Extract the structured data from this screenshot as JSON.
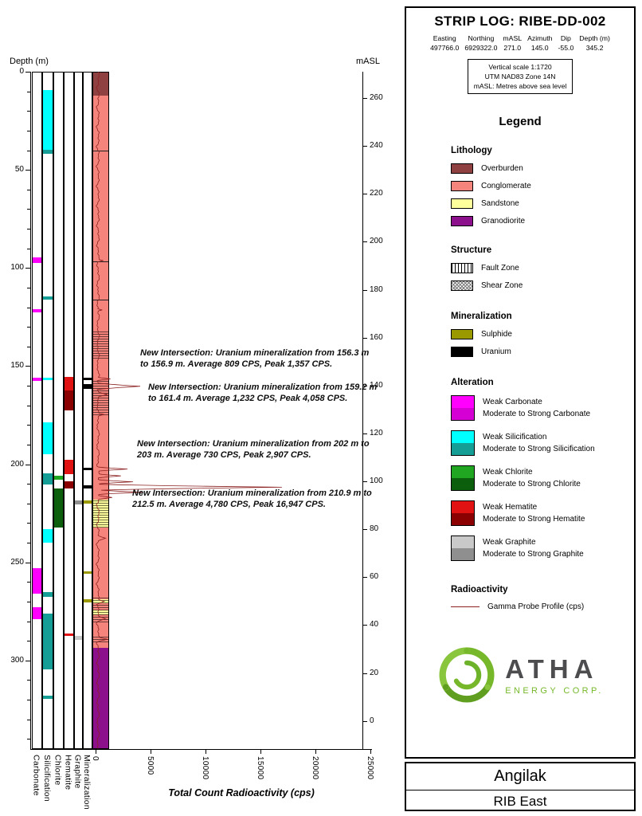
{
  "header": {
    "title": "STRIP LOG: RIBE-DD-002",
    "fields": [
      {
        "label": "Easting",
        "value": "497766.0"
      },
      {
        "label": "Northing",
        "value": "6929322.0"
      },
      {
        "label": "mASL",
        "value": "271.0"
      },
      {
        "label": "Azimuth",
        "value": "145.0"
      },
      {
        "label": "Dip",
        "value": "-55.0"
      },
      {
        "label": "Depth (m)",
        "value": "345.2"
      }
    ],
    "notes": [
      "Vertical scale 1:1720",
      "UTM NAD83 Zone 14N",
      "mASL: Metres above sea level"
    ]
  },
  "legend": {
    "title": "Legend",
    "lithology": {
      "title": "Lithology",
      "items": [
        {
          "label": "Overburden",
          "color": "#8f4040"
        },
        {
          "label": "Conglomerate",
          "color": "#f5847c"
        },
        {
          "label": "Sandstone",
          "color": "#ffff9c"
        },
        {
          "label": "Granodiorite",
          "color": "#8c0f8c"
        }
      ]
    },
    "structure": {
      "title": "Structure",
      "items": [
        {
          "label": "Fault Zone",
          "pattern": "fault"
        },
        {
          "label": "Shear Zone",
          "pattern": "shear"
        }
      ]
    },
    "mineralization": {
      "title": "Mineralization",
      "items": [
        {
          "label": "Sulphide",
          "color": "#9a9a00"
        },
        {
          "label": "Uranium",
          "color": "#000000"
        }
      ]
    },
    "alteration": {
      "title": "Alteration",
      "items": [
        {
          "weak": "Weak Carbonate",
          "strong": "Moderate to Strong Carbonate",
          "weak_color": "#ff00ff",
          "strong_color": "#d400d4"
        },
        {
          "weak": "Weak Silicification",
          "strong": "Moderate to Strong Silicification",
          "weak_color": "#00ffff",
          "strong_color": "#159e96"
        },
        {
          "weak": "Weak Chlorite",
          "strong": "Moderate to Strong Chlorite",
          "weak_color": "#21a621",
          "strong_color": "#0b5e0b"
        },
        {
          "weak": "Weak Hematite",
          "strong": "Moderate to Strong Hematite",
          "weak_color": "#e01212",
          "strong_color": "#8b0000"
        },
        {
          "weak": "Weak Graphite",
          "strong": "Moderate to Strong Graphite",
          "weak_color": "#c9c9c9",
          "strong_color": "#8f8f8f"
        }
      ]
    },
    "radioactivity": {
      "title": "Radioactivity",
      "items": [
        {
          "label": "Gamma Probe Profile (cps)",
          "color": "#8b2020"
        }
      ]
    }
  },
  "footer": {
    "project": "Angilak",
    "area": "RIB East"
  },
  "logo": {
    "name": "ATHA",
    "subtitle": "ENERGY CORP.",
    "green": "#76b82a",
    "dark": "#4d4d4f"
  },
  "colors": {
    "Overburden": "#8f4040",
    "Conglomerate": "#f5847c",
    "Sandstone": "#ffff9c",
    "Granodiorite": "#8c0f8c",
    "Sulphide": "#9a9a00",
    "Uranium": "#000000",
    "carbonate_weak": "#ff00ff",
    "carbonate_strong": "#d400d4",
    "silicification_weak": "#00ffff",
    "silicification_strong": "#159e96",
    "chlorite_weak": "#21a621",
    "chlorite_strong": "#0b5e0b",
    "hematite_weak": "#e01212",
    "hematite_strong": "#8b0000",
    "graphite_weak": "#c9c9c9",
    "graphite_strong": "#8f8f8f",
    "gamma": "#8b2020"
  },
  "chart_data": {
    "type": "strip-log",
    "title": "STRIP LOG: RIBE-DD-002",
    "depth_axis": {
      "label": "Depth (m)",
      "min": 0,
      "max": 345.2,
      "major_tick_interval": 50,
      "minor_tick_interval": 10
    },
    "masl_axis": {
      "label": "mASL",
      "surface_masl": 271.0,
      "dip_deg": -55.0,
      "ticks": [
        260,
        240,
        220,
        200,
        180,
        160,
        140,
        120,
        100,
        80,
        60,
        40,
        20,
        0
      ]
    },
    "x_axis": {
      "label": "Total Count Radioactivity (cps)",
      "min": 0,
      "max": 25000,
      "ticks": [
        0,
        5000,
        10000,
        15000,
        20000,
        25000
      ]
    },
    "track_labels": [
      "Carbonate",
      "Silicification",
      "Chlorite",
      "Hematite",
      "Graphite",
      "Mineralization"
    ],
    "lithology": [
      {
        "unit": "Overburden",
        "from": 0,
        "to": 12.2
      },
      {
        "unit": "Conglomerate",
        "from": 12.2,
        "to": 293.5
      },
      {
        "unit": "Sandstone",
        "from": 218.0,
        "to": 232.5
      },
      {
        "unit": "Sandstone",
        "from": 268.8,
        "to": 271.0
      },
      {
        "unit": "Sandstone",
        "from": 274.5,
        "to": 276.5
      },
      {
        "unit": "Granodiorite",
        "from": 293.5,
        "to": 345.2
      }
    ],
    "alteration": {
      "carbonate": [
        {
          "from": 94.5,
          "to": 97.5,
          "grade": "weak"
        },
        {
          "from": 121.0,
          "to": 122.5,
          "grade": "weak"
        },
        {
          "from": 156.0,
          "to": 157.5,
          "grade": "weak"
        },
        {
          "from": 253.0,
          "to": 266.0,
          "grade": "weak"
        },
        {
          "from": 273.0,
          "to": 279.0,
          "grade": "weak"
        }
      ],
      "silicification": [
        {
          "from": 9.5,
          "to": 39.8,
          "grade": "weak"
        },
        {
          "from": 39.8,
          "to": 41.8,
          "grade": "strong"
        },
        {
          "from": 114.6,
          "to": 116.2,
          "grade": "strong"
        },
        {
          "from": 155.8,
          "to": 157.4,
          "grade": "weak"
        },
        {
          "from": 178.5,
          "to": 195.0,
          "grade": "weak"
        },
        {
          "from": 204.5,
          "to": 210.5,
          "grade": "strong"
        },
        {
          "from": 233.0,
          "to": 240.0,
          "grade": "weak"
        },
        {
          "from": 265.0,
          "to": 267.5,
          "grade": "strong"
        },
        {
          "from": 276.0,
          "to": 304.5,
          "grade": "strong"
        },
        {
          "from": 318.0,
          "to": 319.6,
          "grade": "strong"
        }
      ],
      "chlorite": [
        {
          "from": 206.0,
          "to": 208.0,
          "grade": "weak"
        },
        {
          "from": 212.5,
          "to": 232.5,
          "grade": "strong"
        }
      ],
      "hematite": [
        {
          "from": 155.5,
          "to": 162.4,
          "grade": "weak"
        },
        {
          "from": 162.4,
          "to": 172.6,
          "grade": "strong"
        },
        {
          "from": 197.8,
          "to": 205.1,
          "grade": "weak"
        },
        {
          "from": 208.8,
          "to": 212.4,
          "grade": "strong"
        },
        {
          "from": 286.3,
          "to": 287.5,
          "grade": "weak"
        }
      ],
      "graphite": [
        {
          "from": 218.5,
          "to": 220.5,
          "grade": "strong"
        },
        {
          "from": 287.5,
          "to": 289.5,
          "grade": "weak"
        }
      ]
    },
    "mineralization": [
      {
        "mineral": "Uranium",
        "from": 156.1,
        "to": 157.0
      },
      {
        "mineral": "Uranium",
        "from": 159.0,
        "to": 161.5
      },
      {
        "mineral": "Uranium",
        "from": 201.9,
        "to": 203.1
      },
      {
        "mineral": "Uranium",
        "from": 210.7,
        "to": 212.6
      },
      {
        "mineral": "Sulphide",
        "from": 218.5,
        "to": 220.0
      },
      {
        "mineral": "Sulphide",
        "from": 254.5,
        "to": 256.0
      },
      {
        "mineral": "Sulphide",
        "from": 269.0,
        "to": 270.5
      }
    ],
    "structure": [
      {
        "type": "Fault Zone",
        "from": 132.0,
        "to": 146.0
      },
      {
        "type": "Fault Zone",
        "from": 157.5,
        "to": 175.0
      },
      {
        "type": "Fault Zone",
        "from": 218.0,
        "to": 232.5
      },
      {
        "type": "Fault Zone",
        "from": 267.5,
        "to": 280.5
      },
      {
        "type": "Fault Zone",
        "from": 287.0,
        "to": 291.0
      }
    ],
    "structure_lines": [
      40,
      96.5,
      116
    ],
    "gamma_profile": {
      "baseline_cps": 200,
      "spikes": [
        {
          "d0": 95.5,
          "d1": 97.0,
          "peak": 700
        },
        {
          "d0": 120.8,
          "d1": 122.0,
          "peak": 600
        },
        {
          "d0": 155.9,
          "d1": 157.2,
          "peak": 1357
        },
        {
          "d0": 158.9,
          "d1": 161.7,
          "peak": 4058
        },
        {
          "d0": 163.0,
          "d1": 166.0,
          "peak": 1100
        },
        {
          "d0": 174.0,
          "d1": 175.5,
          "peak": 800
        },
        {
          "d0": 201.7,
          "d1": 203.3,
          "peak": 2907
        },
        {
          "d0": 205.2,
          "d1": 206.8,
          "peak": 2300
        },
        {
          "d0": 208.2,
          "d1": 209.8,
          "peak": 3400
        },
        {
          "d0": 210.6,
          "d1": 212.9,
          "peak": 16947
        },
        {
          "d0": 213.4,
          "d1": 215.2,
          "peak": 4200
        },
        {
          "d0": 216.0,
          "d1": 218.0,
          "peak": 1500
        },
        {
          "d0": 236.0,
          "d1": 239.5,
          "peak": 900
        },
        {
          "d0": 268.5,
          "d1": 271.5,
          "peak": 800
        },
        {
          "d0": 277.0,
          "d1": 280.5,
          "peak": 900
        },
        {
          "d0": 288.0,
          "d1": 290.5,
          "peak": 1100
        }
      ]
    },
    "intersections": [
      {
        "from_m": 156.3,
        "to_m": 156.9,
        "avg_cps": 809,
        "peak_cps": 1357,
        "text": "New Intersection: Uranium mineralization from 156.3 m to 156.9 m. Average 809 CPS, Peak 1,357 CPS."
      },
      {
        "from_m": 159.2,
        "to_m": 161.4,
        "avg_cps": 1232,
        "peak_cps": 4058,
        "text": "New Intersection: Uranium mineralization from 159.2 m to 161.4 m. Average 1,232 CPS, Peak 4,058 CPS."
      },
      {
        "from_m": 202,
        "to_m": 203,
        "avg_cps": 730,
        "peak_cps": 2907,
        "text": "New Intersection: Uranium mineralization from 202 m to 203 m. Average 730 CPS, Peak 2,907 CPS."
      },
      {
        "from_m": 210.9,
        "to_m": 212.5,
        "avg_cps": 4780,
        "peak_cps": 16947,
        "text": "New Intersection: Uranium mineralization from 210.9 m to 212.5 m. Average 4,780 CPS, Peak 16,947 CPS."
      }
    ]
  }
}
